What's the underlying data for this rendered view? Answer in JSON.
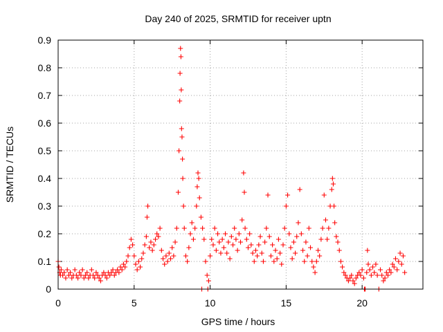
{
  "chart_data": {
    "type": "scatter",
    "title": "Day 240 of 2025, SRMTID for receiver uptn",
    "xlabel": "GPS time / hours",
    "ylabel": "SRMTID / TECUs",
    "xlim": [
      0,
      24
    ],
    "ylim": [
      0,
      0.9
    ],
    "xticks": [
      0,
      5,
      10,
      15,
      20
    ],
    "xtick_labels": [
      "0",
      "5",
      "10",
      "15",
      "20"
    ],
    "yticks": [
      0,
      0.1,
      0.2,
      0.3,
      0.4,
      0.5,
      0.6,
      0.7,
      0.8,
      0.9
    ],
    "ytick_labels": [
      "0",
      "0.1",
      "0.2",
      "0.3",
      "0.4",
      "0.5",
      "0.6",
      "0.7",
      "0.8",
      "0.9"
    ],
    "grid": true,
    "marker": "+",
    "color": "#ff0000",
    "series": [
      {
        "name": "SRMTID",
        "points": [
          [
            0.0,
            0.1
          ],
          [
            0.05,
            0.08
          ],
          [
            0.1,
            0.06
          ],
          [
            0.15,
            0.05
          ],
          [
            0.2,
            0.07
          ],
          [
            0.3,
            0.05
          ],
          [
            0.4,
            0.06
          ],
          [
            0.5,
            0.04
          ],
          [
            0.6,
            0.07
          ],
          [
            0.7,
            0.05
          ],
          [
            0.8,
            0.06
          ],
          [
            0.9,
            0.04
          ],
          [
            1.0,
            0.05
          ],
          [
            1.1,
            0.07
          ],
          [
            1.2,
            0.05
          ],
          [
            1.3,
            0.04
          ],
          [
            1.4,
            0.06
          ],
          [
            1.5,
            0.05
          ],
          [
            1.6,
            0.07
          ],
          [
            1.7,
            0.04
          ],
          [
            1.8,
            0.05
          ],
          [
            1.9,
            0.06
          ],
          [
            2.0,
            0.04
          ],
          [
            2.1,
            0.05
          ],
          [
            2.2,
            0.07
          ],
          [
            2.3,
            0.05
          ],
          [
            2.4,
            0.04
          ],
          [
            2.5,
            0.06
          ],
          [
            2.6,
            0.05
          ],
          [
            2.7,
            0.04
          ],
          [
            2.8,
            0.03
          ],
          [
            2.9,
            0.05
          ],
          [
            3.0,
            0.06
          ],
          [
            3.1,
            0.05
          ],
          [
            3.2,
            0.04
          ],
          [
            3.3,
            0.06
          ],
          [
            3.4,
            0.05
          ],
          [
            3.5,
            0.06
          ],
          [
            3.6,
            0.07
          ],
          [
            3.7,
            0.05
          ],
          [
            3.8,
            0.06
          ],
          [
            3.9,
            0.07
          ],
          [
            4.0,
            0.06
          ],
          [
            4.1,
            0.08
          ],
          [
            4.2,
            0.07
          ],
          [
            4.3,
            0.09
          ],
          [
            4.4,
            0.08
          ],
          [
            4.5,
            0.1
          ],
          [
            4.6,
            0.12
          ],
          [
            4.7,
            0.15
          ],
          [
            4.8,
            0.18
          ],
          [
            4.9,
            0.16
          ],
          [
            5.0,
            0.12
          ],
          [
            5.1,
            0.09
          ],
          [
            5.2,
            0.07
          ],
          [
            5.3,
            0.1
          ],
          [
            5.4,
            0.08
          ],
          [
            5.5,
            0.11
          ],
          [
            5.6,
            0.13
          ],
          [
            5.7,
            0.16
          ],
          [
            5.8,
            0.19
          ],
          [
            5.85,
            0.26
          ],
          [
            5.9,
            0.3
          ],
          [
            6.0,
            0.15
          ],
          [
            6.1,
            0.17
          ],
          [
            6.2,
            0.14
          ],
          [
            6.3,
            0.16
          ],
          [
            6.4,
            0.18
          ],
          [
            6.5,
            0.2
          ],
          [
            6.6,
            0.19
          ],
          [
            6.7,
            0.22
          ],
          [
            6.8,
            0.14
          ],
          [
            6.9,
            0.11
          ],
          [
            7.0,
            0.09
          ],
          [
            7.1,
            0.12
          ],
          [
            7.2,
            0.1
          ],
          [
            7.3,
            0.13
          ],
          [
            7.4,
            0.11
          ],
          [
            7.5,
            0.15
          ],
          [
            7.6,
            0.12
          ],
          [
            7.7,
            0.17
          ],
          [
            7.8,
            0.22
          ],
          [
            7.9,
            0.35
          ],
          [
            7.95,
            0.5
          ],
          [
            8.0,
            0.68
          ],
          [
            8.02,
            0.78
          ],
          [
            8.05,
            0.87
          ],
          [
            8.08,
            0.84
          ],
          [
            8.1,
            0.72
          ],
          [
            8.12,
            0.58
          ],
          [
            8.15,
            0.55
          ],
          [
            8.18,
            0.47
          ],
          [
            8.2,
            0.4
          ],
          [
            8.25,
            0.3
          ],
          [
            8.3,
            0.22
          ],
          [
            8.4,
            0.12
          ],
          [
            8.5,
            0.1
          ],
          [
            8.6,
            0.15
          ],
          [
            8.7,
            0.2
          ],
          [
            8.8,
            0.24
          ],
          [
            8.9,
            0.18
          ],
          [
            9.0,
            0.22
          ],
          [
            9.1,
            0.3
          ],
          [
            9.15,
            0.37
          ],
          [
            9.2,
            0.42
          ],
          [
            9.25,
            0.4
          ],
          [
            9.3,
            0.33
          ],
          [
            9.4,
            0.26
          ],
          [
            9.45,
            0.0
          ],
          [
            9.5,
            0.22
          ],
          [
            9.6,
            0.18
          ],
          [
            9.7,
            0.1
          ],
          [
            9.8,
            0.05
          ],
          [
            9.85,
            0.0
          ],
          [
            9.9,
            0.03
          ],
          [
            10.0,
            0.12
          ],
          [
            10.1,
            0.18
          ],
          [
            10.2,
            0.16
          ],
          [
            10.3,
            0.22
          ],
          [
            10.4,
            0.14
          ],
          [
            10.5,
            0.2
          ],
          [
            10.6,
            0.17
          ],
          [
            10.7,
            0.13
          ],
          [
            10.8,
            0.18
          ],
          [
            10.9,
            0.15
          ],
          [
            11.0,
            0.2
          ],
          [
            11.1,
            0.13
          ],
          [
            11.2,
            0.17
          ],
          [
            11.3,
            0.11
          ],
          [
            11.4,
            0.19
          ],
          [
            11.5,
            0.16
          ],
          [
            11.6,
            0.22
          ],
          [
            11.7,
            0.18
          ],
          [
            11.8,
            0.14
          ],
          [
            11.9,
            0.2
          ],
          [
            12.0,
            0.17
          ],
          [
            12.1,
            0.25
          ],
          [
            12.2,
            0.42
          ],
          [
            12.25,
            0.35
          ],
          [
            12.3,
            0.22
          ],
          [
            12.4,
            0.18
          ],
          [
            12.5,
            0.15
          ],
          [
            12.6,
            0.2
          ],
          [
            12.7,
            0.16
          ],
          [
            12.8,
            0.13
          ],
          [
            12.9,
            0.1
          ],
          [
            13.0,
            0.14
          ],
          [
            13.1,
            0.12
          ],
          [
            13.2,
            0.16
          ],
          [
            13.3,
            0.19
          ],
          [
            13.4,
            0.13
          ],
          [
            13.5,
            0.1
          ],
          [
            13.6,
            0.17
          ],
          [
            13.7,
            0.22
          ],
          [
            13.8,
            0.34
          ],
          [
            13.9,
            0.19
          ],
          [
            14.0,
            0.12
          ],
          [
            14.1,
            0.16
          ],
          [
            14.2,
            0.1
          ],
          [
            14.3,
            0.14
          ],
          [
            14.4,
            0.11
          ],
          [
            14.5,
            0.18
          ],
          [
            14.6,
            0.13
          ],
          [
            14.7,
            0.09
          ],
          [
            14.8,
            0.16
          ],
          [
            14.9,
            0.22
          ],
          [
            15.0,
            0.3
          ],
          [
            15.1,
            0.34
          ],
          [
            15.2,
            0.2
          ],
          [
            15.3,
            0.15
          ],
          [
            15.4,
            0.11
          ],
          [
            15.5,
            0.17
          ],
          [
            15.6,
            0.13
          ],
          [
            15.7,
            0.19
          ],
          [
            15.8,
            0.24
          ],
          [
            15.9,
            0.36
          ],
          [
            16.0,
            0.2
          ],
          [
            16.1,
            0.14
          ],
          [
            16.2,
            0.1
          ],
          [
            16.3,
            0.17
          ],
          [
            16.4,
            0.12
          ],
          [
            16.5,
            0.22
          ],
          [
            16.6,
            0.15
          ],
          [
            16.7,
            0.1
          ],
          [
            16.8,
            0.08
          ],
          [
            16.9,
            0.06
          ],
          [
            17.0,
            0.1
          ],
          [
            17.1,
            0.14
          ],
          [
            17.2,
            0.12
          ],
          [
            17.3,
            0.18
          ],
          [
            17.4,
            0.22
          ],
          [
            17.5,
            0.34
          ],
          [
            17.6,
            0.25
          ],
          [
            17.7,
            0.18
          ],
          [
            17.8,
            0.22
          ],
          [
            17.9,
            0.3
          ],
          [
            18.0,
            0.36
          ],
          [
            18.05,
            0.4
          ],
          [
            18.1,
            0.38
          ],
          [
            18.15,
            0.3
          ],
          [
            18.2,
            0.24
          ],
          [
            18.3,
            0.19
          ],
          [
            18.4,
            0.17
          ],
          [
            18.5,
            0.14
          ],
          [
            18.6,
            0.1
          ],
          [
            18.7,
            0.08
          ],
          [
            18.8,
            0.06
          ],
          [
            18.9,
            0.05
          ],
          [
            19.0,
            0.04
          ],
          [
            19.1,
            0.03
          ],
          [
            19.2,
            0.04
          ],
          [
            19.3,
            0.05
          ],
          [
            19.4,
            0.03
          ],
          [
            19.5,
            0.02
          ],
          [
            19.6,
            0.04
          ],
          [
            19.7,
            0.05
          ],
          [
            19.8,
            0.06
          ],
          [
            19.9,
            0.05
          ],
          [
            20.0,
            0.07
          ],
          [
            20.1,
            0.04
          ],
          [
            20.15,
            0.0
          ],
          [
            20.2,
            0.0
          ],
          [
            20.3,
            0.06
          ],
          [
            20.35,
            0.14
          ],
          [
            20.4,
            0.09
          ],
          [
            20.5,
            0.07
          ],
          [
            20.6,
            0.05
          ],
          [
            20.7,
            0.08
          ],
          [
            20.8,
            0.06
          ],
          [
            20.9,
            0.09
          ],
          [
            21.0,
            0.05
          ],
          [
            21.1,
            0.0
          ],
          [
            21.2,
            0.07
          ],
          [
            21.3,
            0.05
          ],
          [
            21.4,
            0.03
          ],
          [
            21.5,
            0.04
          ],
          [
            21.6,
            0.06
          ],
          [
            21.7,
            0.05
          ],
          [
            21.8,
            0.07
          ],
          [
            21.9,
            0.06
          ],
          [
            22.0,
            0.09
          ],
          [
            22.1,
            0.08
          ],
          [
            22.2,
            0.11
          ],
          [
            22.3,
            0.07
          ],
          [
            22.4,
            0.1
          ],
          [
            22.5,
            0.13
          ],
          [
            22.6,
            0.09
          ],
          [
            22.7,
            0.12
          ],
          [
            22.8,
            0.06
          ]
        ]
      }
    ]
  }
}
